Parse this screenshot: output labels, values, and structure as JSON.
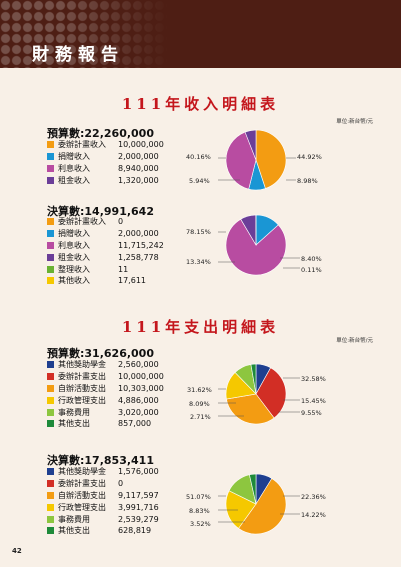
{
  "header": {
    "title": "財務報告"
  },
  "page_number": "42",
  "income": {
    "title": "111年收入明細表",
    "unit": "單位:新台幣/元",
    "budget": {
      "heading": "預算數:22,260,000",
      "items": [
        {
          "label": "委辦計畫收入",
          "value": "10,000,000",
          "color": "#f39c12"
        },
        {
          "label": "捐贈收入",
          "value": "2,000,000",
          "color": "#1a96d4"
        },
        {
          "label": "利息收入",
          "value": "8,940,000",
          "color": "#b84ca1"
        },
        {
          "label": "租金收入",
          "value": "1,320,000",
          "color": "#6b3e98"
        }
      ],
      "pie_labels": [
        "44.92%",
        "8.98%",
        "40.16%",
        "5.94%"
      ]
    },
    "actual": {
      "heading": "決算數:14,991,642",
      "items": [
        {
          "label": "委辦計畫收入",
          "value": "0",
          "color": "#f39c12"
        },
        {
          "label": "捐贈收入",
          "value": "2,000,000",
          "color": "#1a96d4"
        },
        {
          "label": "利息收入",
          "value": "11,715,242",
          "color": "#b84ca1"
        },
        {
          "label": "租金收入",
          "value": "1,258,778",
          "color": "#6b3e98"
        },
        {
          "label": "整理收入",
          "value": "11",
          "color": "#6ab233"
        },
        {
          "label": "其他收入",
          "value": "17,611",
          "color": "#f5c800"
        }
      ],
      "pie_labels": [
        "78.15%",
        "13.34%",
        "8.40%",
        "0.11%"
      ]
    }
  },
  "expense": {
    "title": "111年支出明細表",
    "unit": "單位:新台幣/元",
    "budget": {
      "heading": "預算數:31,626,000",
      "items": [
        {
          "label": "其他獎助學金",
          "value": "2,560,000",
          "color": "#1f3f8f"
        },
        {
          "label": "委辦計畫支出",
          "value": "10,000,000",
          "color": "#d22e25"
        },
        {
          "label": "自辦活動支出",
          "value": "10,303,000",
          "color": "#f39c12"
        },
        {
          "label": "行政管理支出",
          "value": "4,886,000",
          "color": "#f5c800"
        },
        {
          "label": "事務費用",
          "value": "3,020,000",
          "color": "#8dc63f"
        },
        {
          "label": "其他支出",
          "value": "857,000",
          "color": "#1e8a3a"
        }
      ],
      "pie_labels": [
        "32.58%",
        "31.62%",
        "15.45%",
        "8.09%",
        "9.55%",
        "2.71%"
      ]
    },
    "actual": {
      "heading": "決算數:17,853,411",
      "items": [
        {
          "label": "其他獎助學金",
          "value": "1,576,000",
          "color": "#1f3f8f"
        },
        {
          "label": "委辦計畫支出",
          "value": "0",
          "color": "#d22e25"
        },
        {
          "label": "自辦活動支出",
          "value": "9,117,597",
          "color": "#f39c12"
        },
        {
          "label": "行政管理支出",
          "value": "3,991,716",
          "color": "#f5c800"
        },
        {
          "label": "事務費用",
          "value": "2,539,279",
          "color": "#8dc63f"
        },
        {
          "label": "其他支出",
          "value": "628,819",
          "color": "#1e8a3a"
        }
      ],
      "pie_labels": [
        "51.07%",
        "22.36%",
        "8.83%",
        "14.22%",
        "3.52%"
      ]
    }
  },
  "chart_data": [
    {
      "type": "pie",
      "categories": [
        "委辦計畫收入",
        "捐贈收入",
        "利息收入",
        "租金收入"
      ],
      "values": [
        44.92,
        8.98,
        40.16,
        5.94
      ]
    },
    {
      "type": "pie",
      "categories": [
        "委辦計畫收入",
        "捐贈收入",
        "利息收入",
        "租金收入",
        "整理收入",
        "其他收入"
      ],
      "values": [
        0,
        13.34,
        78.15,
        8.4,
        0.0,
        0.11
      ]
    },
    {
      "type": "pie",
      "categories": [
        "其他獎助學金",
        "委辦計畫支出",
        "自辦活動支出",
        "行政管理支出",
        "事務費用",
        "其他支出"
      ],
      "values": [
        8.09,
        31.62,
        32.58,
        15.45,
        9.55,
        2.71
      ]
    },
    {
      "type": "pie",
      "categories": [
        "其他獎助學金",
        "委辦計畫支出",
        "自辦活動支出",
        "行政管理支出",
        "事務費用",
        "其他支出"
      ],
      "values": [
        8.83,
        0,
        51.07,
        22.36,
        14.22,
        3.52
      ]
    }
  ]
}
